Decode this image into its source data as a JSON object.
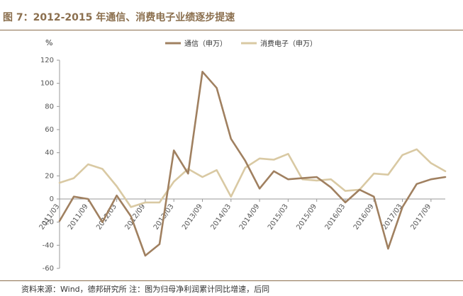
{
  "header": {
    "title": "图 7：2012-2015 年通信、消费电子业绩逐步提速",
    "unit": "%",
    "source": "资料来源：Wind，德邦研究所 注：图为归母净利润累计同比增速，后同"
  },
  "colors": {
    "series1": "#A08060",
    "series2": "#D9C9A3",
    "rule": "#8B6F4E"
  },
  "chart_data": {
    "type": "line",
    "ylabel": "%",
    "ylim": [
      -60,
      120
    ],
    "yticks": [
      -60,
      -40,
      -20,
      0,
      20,
      40,
      60,
      80,
      100,
      120
    ],
    "x": [
      "2011/03",
      "2011/06",
      "2011/09",
      "2011/12",
      "2012/03",
      "2012/06",
      "2012/09",
      "2012/12",
      "2013/03",
      "2013/06",
      "2013/09",
      "2013/12",
      "2014/03",
      "2014/06",
      "2014/09",
      "2014/12",
      "2015/03",
      "2015/06",
      "2015/09",
      "2015/12",
      "2016/03",
      "2016/06",
      "2016/09",
      "2016/12",
      "2017/03",
      "2017/06",
      "2017/09",
      "2017/12"
    ],
    "x_tick_labels": [
      {
        "index": 0,
        "label": "2011/03"
      },
      {
        "index": 2,
        "label": "2011/09"
      },
      {
        "index": 4,
        "label": "2012/03"
      },
      {
        "index": 6,
        "label": "2012/09"
      },
      {
        "index": 8,
        "label": "2013/03"
      },
      {
        "index": 10,
        "label": "2013/09"
      },
      {
        "index": 12,
        "label": "2014/03"
      },
      {
        "index": 14,
        "label": "2014/09"
      },
      {
        "index": 16,
        "label": "2015/03"
      },
      {
        "index": 18,
        "label": "2015/09"
      },
      {
        "index": 20,
        "label": "2016/03"
      },
      {
        "index": 22,
        "label": "2016/09"
      },
      {
        "index": 24,
        "label": "2017/03"
      },
      {
        "index": 26,
        "label": "2017/09"
      }
    ],
    "series": [
      {
        "name": "通信（申万）",
        "color": "#A08060",
        "values": [
          -19,
          2,
          0,
          -20,
          3,
          -15,
          -49,
          -39,
          42,
          22,
          110,
          96,
          52,
          33,
          9,
          24,
          17,
          18,
          19,
          10,
          -3,
          8,
          2,
          -43,
          -7,
          13,
          17,
          19
        ]
      },
      {
        "name": "消费电子（申万）",
        "color": "#D9C9A3",
        "values": [
          14,
          18,
          30,
          26,
          11,
          -7,
          -3,
          -3,
          15,
          26,
          19,
          25,
          2,
          27,
          35,
          34,
          39,
          17,
          16,
          17,
          7,
          8,
          22,
          21,
          38,
          43,
          31,
          24
        ]
      }
    ],
    "legend": "top-center",
    "grid": false
  }
}
